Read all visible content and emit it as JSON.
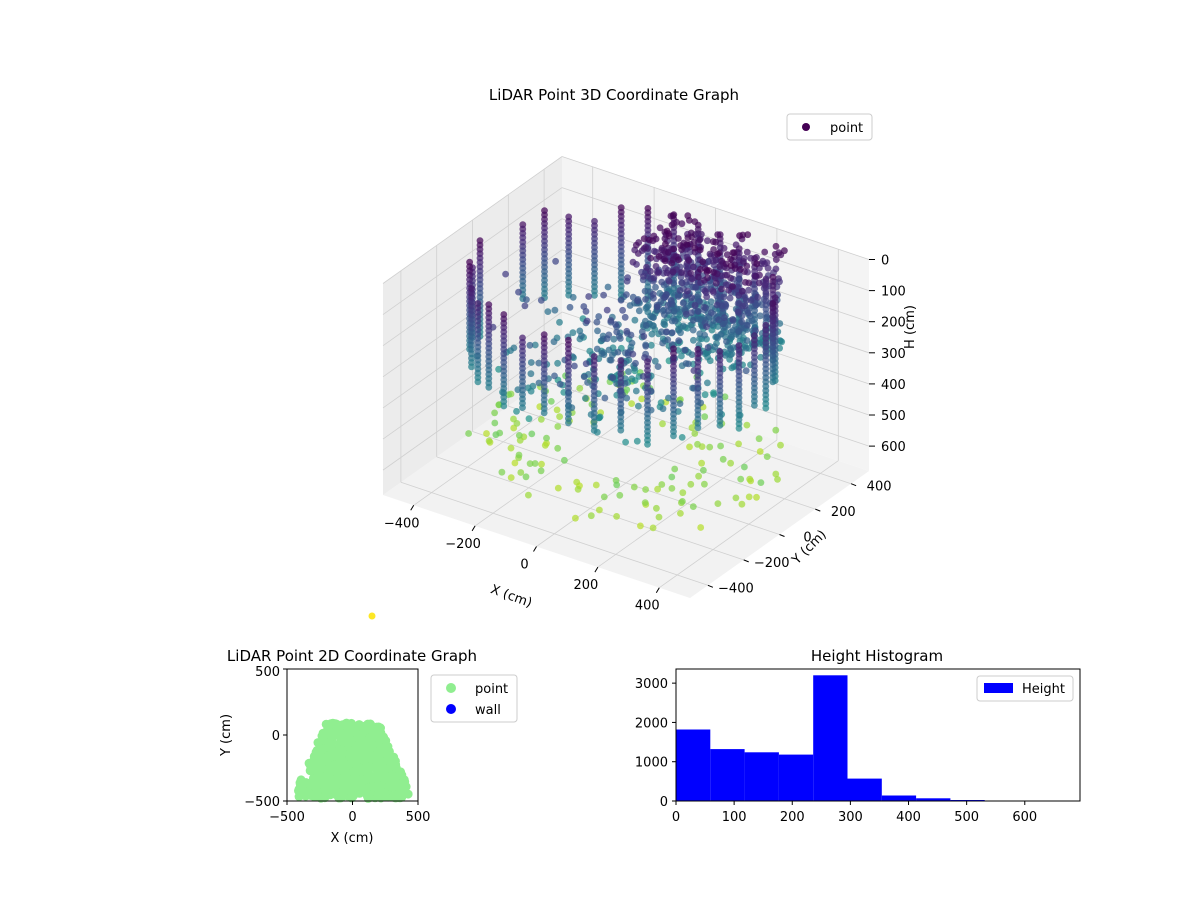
{
  "chart_data": [
    {
      "type": "scatter",
      "projection": "3d",
      "title": "LiDAR Point 3D Coordinate Graph",
      "xlabel": "X (cm)",
      "ylabel": "Y (cm)",
      "zlabel": "H (cm)",
      "legend": [
        "point"
      ],
      "legend_position": "upper-right",
      "colormap": "viridis",
      "xticks": [
        "−400",
        "−200",
        "0",
        "200",
        "400"
      ],
      "yticks": [
        "−400",
        "−200",
        "0",
        "200",
        "400"
      ],
      "zticks": [
        "0",
        "100",
        "200",
        "300",
        "400",
        "500",
        "600"
      ],
      "xlim": [
        -500,
        500
      ],
      "ylim": [
        -500,
        500
      ],
      "zlim": [
        0,
        680
      ],
      "z_inverted": true,
      "grid": true,
      "description_series": {
        "wall_columns": "vertical columns of points forming a ring of radius ~430 cm, heights 0-300 cm",
        "canopy": "dense cloud at the back, heights 0-320 cm",
        "floor": "scattered points at H ~ 560-600 cm"
      }
    },
    {
      "type": "scatter",
      "title": "LiDAR Point 2D Coordinate Graph",
      "xlabel": "X (cm)",
      "ylabel": "Y (cm)",
      "xticks": [
        "−500",
        "0",
        "500"
      ],
      "yticks": [
        "−500",
        "0",
        "500"
      ],
      "xlim": [
        -500,
        500
      ],
      "ylim": [
        -500,
        500
      ],
      "series": [
        {
          "name": "point",
          "color": "#90ee90"
        },
        {
          "name": "wall",
          "color": "#0000ff"
        }
      ],
      "legend_position": "outside-right"
    },
    {
      "type": "bar",
      "subtype": "histogram",
      "title": "Height Histogram",
      "series_name": "Height",
      "color": "#0000ff",
      "bin_edges": [
        0,
        59,
        118,
        177,
        236,
        295,
        354,
        413,
        472,
        531,
        590,
        649,
        690
      ],
      "counts": [
        1820,
        1320,
        1240,
        1180,
        3200,
        570,
        140,
        70,
        25,
        8,
        4,
        2
      ],
      "xticks": [
        "0",
        "100",
        "200",
        "300",
        "400",
        "500",
        "600"
      ],
      "yticks": [
        "0",
        "1000",
        "2000",
        "3000"
      ],
      "xlim": [
        0,
        695
      ],
      "ylim": [
        0,
        3360
      ],
      "legend_position": "upper-right"
    }
  ],
  "stray_point_color": "#fde725"
}
